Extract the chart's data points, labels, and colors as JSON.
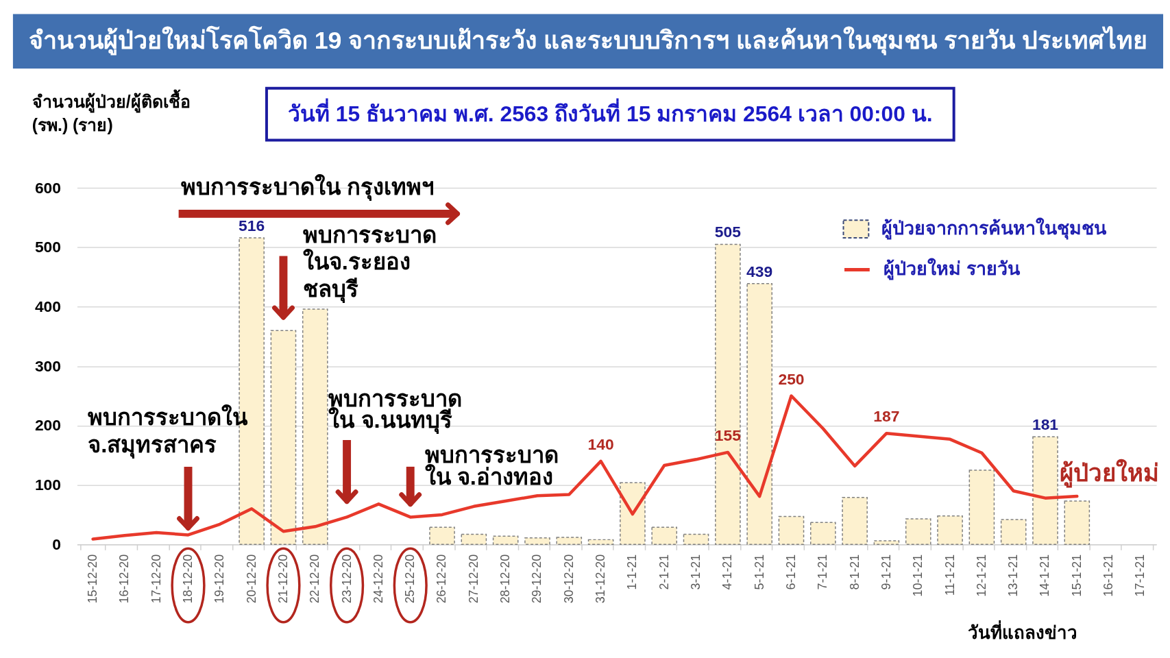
{
  "chart_data": {
    "type": "bar",
    "title": "จำนวนผู้ป่วยใหม่โรคโควิด 19 จากระบบเฝ้าระวัง และระบบบริการฯ และค้นหาในชุมชน รายวัน ประเทศไทย",
    "subtitle": "วันที่ 15 ธันวาคม พ.ศ. 2563 ถึงวันที่ 15 มกราคม 2564 เวลา 00:00 น.",
    "ylabel": "จำนวนผู้ป่วย/ผู้ติดเชื้อ\n(รพ.) (ราย)",
    "xlabel": "วันที่แถลงข่าว",
    "categories": [
      "15-12-20",
      "16-12-20",
      "17-12-20",
      "18-12-20",
      "19-12-20",
      "20-12-20",
      "21-12-20",
      "22-12-20",
      "23-12-20",
      "24-12-20",
      "25-12-20",
      "26-12-20",
      "27-12-20",
      "28-12-20",
      "29-12-20",
      "30-12-20",
      "31-12-20",
      "1-1-21",
      "2-1-21",
      "3-1-21",
      "4-1-21",
      "5-1-21",
      "6-1-21",
      "7-1-21",
      "8-1-21",
      "9-1-21",
      "10-1-21",
      "11-1-21",
      "12-1-21",
      "13-1-21",
      "14-1-21",
      "15-1-21",
      "16-1-21",
      "17-1-21"
    ],
    "series": [
      {
        "name": "ผู้ป่วยจากการค้นหาในชุมชน",
        "color": "#fdf1cf",
        "values": [
          null,
          null,
          null,
          null,
          null,
          516,
          360,
          396,
          null,
          null,
          null,
          29,
          17,
          14,
          11,
          12,
          8,
          104,
          29,
          17,
          505,
          439,
          47,
          37,
          79,
          6,
          43,
          48,
          125,
          42,
          181,
          73,
          null,
          null
        ],
        "value_labels": [
          null,
          null,
          null,
          null,
          null,
          "516",
          null,
          null,
          null,
          null,
          null,
          null,
          null,
          null,
          null,
          null,
          null,
          null,
          null,
          null,
          "505",
          "439",
          null,
          null,
          null,
          null,
          null,
          null,
          null,
          null,
          "181",
          null,
          null,
          null
        ]
      },
      {
        "name": "ผู้ป่วยใหม่ รายวัน",
        "type": "line",
        "color": "#e8392b",
        "values": [
          9,
          15,
          20,
          16,
          34,
          60,
          22,
          30,
          46,
          68,
          46,
          50,
          64,
          73,
          82,
          84,
          140,
          51,
          133,
          143,
          155,
          81,
          250,
          195,
          132,
          187,
          182,
          177,
          154,
          90,
          78,
          81,
          null,
          null
        ],
        "value_labels": [
          null,
          null,
          null,
          null,
          null,
          null,
          null,
          null,
          null,
          null,
          null,
          null,
          null,
          null,
          null,
          null,
          "140",
          null,
          null,
          null,
          "155",
          null,
          "250",
          null,
          null,
          "187",
          null,
          null,
          null,
          null,
          null,
          null,
          null,
          null
        ]
      }
    ],
    "ylim": [
      0,
      600
    ],
    "yticks": [
      0,
      100,
      200,
      300,
      400,
      500,
      600
    ],
    "grid": "y",
    "legend": "top right",
    "annotations": [
      "พบการระบาดใน กรุงเทพฯ",
      "พบการระบาดใน\nจ.สมุทรสาคร",
      "พบการระบาด\nในจ.ระยอง\nชลบุรี",
      "พบการระบาด\nใน จ.นนทบุรี",
      "พบการระบาด\nใน จ.อ่างทอง",
      {
        "text": "ผู้ป่วยใหม่",
        "x": "15-1-21",
        "y": 81
      }
    ]
  }
}
